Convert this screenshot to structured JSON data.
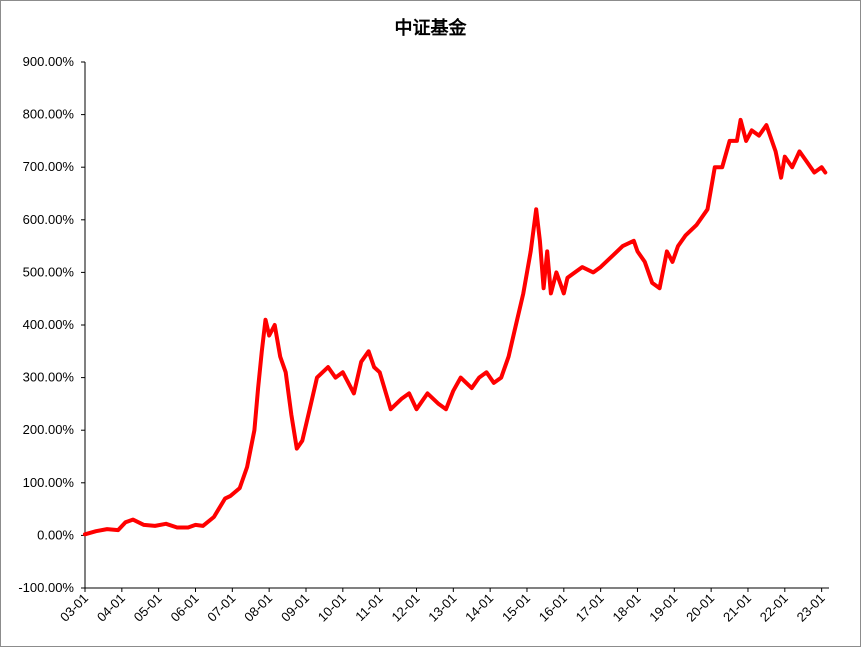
{
  "chart_data": {
    "type": "line",
    "title": "中证基金",
    "xlabel": "",
    "ylabel": "",
    "ylim": [
      -100,
      900
    ],
    "y_ticks": [
      "900.00%",
      "800.00%",
      "700.00%",
      "600.00%",
      "500.00%",
      "400.00%",
      "300.00%",
      "200.00%",
      "100.00%",
      "0.00%",
      "-100.00%"
    ],
    "x_ticks": [
      "03-01",
      "04-01",
      "05-01",
      "06-01",
      "07-01",
      "08-01",
      "09-01",
      "10-01",
      "11-01",
      "12-01",
      "13-01",
      "14-01",
      "15-01",
      "16-01",
      "17-01",
      "18-01",
      "19-01",
      "20-01",
      "21-01",
      "22-01",
      "23-01"
    ],
    "x_range": [
      2003.0,
      2023.2
    ],
    "grid": false,
    "legend": "none",
    "line_color": "#ff0000",
    "series": [
      {
        "x": [
          2003.0,
          2003.3,
          2003.6,
          2003.9,
          2004.1,
          2004.3,
          2004.6,
          2004.9,
          2005.2,
          2005.5,
          2005.8,
          2006.0,
          2006.2,
          2006.5,
          2006.8,
          2006.95,
          2007.2,
          2007.4,
          2007.6,
          2007.7,
          2007.8,
          2007.9,
          2008.0,
          2008.15,
          2008.3,
          2008.45,
          2008.6,
          2008.75,
          2008.9,
          2009.1,
          2009.3,
          2009.6,
          2009.8,
          2010.0,
          2010.3,
          2010.5,
          2010.7,
          2010.85,
          2011.0,
          2011.3,
          2011.6,
          2011.8,
          2012.0,
          2012.3,
          2012.6,
          2012.8,
          2013.0,
          2013.2,
          2013.5,
          2013.7,
          2013.9,
          2014.1,
          2014.3,
          2014.5,
          2014.7,
          2014.9,
          2015.1,
          2015.25,
          2015.35,
          2015.45,
          2015.55,
          2015.65,
          2015.8,
          2016.0,
          2016.1,
          2016.3,
          2016.5,
          2016.8,
          2017.0,
          2017.3,
          2017.6,
          2017.9,
          2018.0,
          2018.2,
          2018.4,
          2018.6,
          2018.8,
          2018.95,
          2019.1,
          2019.3,
          2019.6,
          2019.9,
          2020.1,
          2020.3,
          2020.5,
          2020.7,
          2020.8,
          2020.95,
          2021.1,
          2021.3,
          2021.5,
          2021.75,
          2021.9,
          2022.0,
          2022.2,
          2022.4,
          2022.6,
          2022.8,
          2023.0,
          2023.1
        ],
        "y": [
          2,
          8,
          12,
          10,
          25,
          30,
          20,
          18,
          22,
          15,
          15,
          20,
          18,
          35,
          70,
          75,
          90,
          130,
          200,
          280,
          350,
          410,
          380,
          400,
          340,
          310,
          230,
          165,
          180,
          240,
          300,
          320,
          300,
          310,
          270,
          330,
          350,
          320,
          310,
          240,
          260,
          270,
          240,
          270,
          250,
          240,
          275,
          300,
          280,
          300,
          310,
          290,
          300,
          340,
          400,
          460,
          540,
          620,
          560,
          470,
          540,
          460,
          500,
          460,
          490,
          500,
          510,
          500,
          510,
          530,
          550,
          560,
          540,
          520,
          480,
          470,
          540,
          520,
          550,
          570,
          590,
          620,
          700,
          700,
          750,
          750,
          790,
          750,
          770,
          760,
          780,
          730,
          680,
          720,
          700,
          730,
          710,
          690,
          700,
          690
        ]
      }
    ]
  }
}
